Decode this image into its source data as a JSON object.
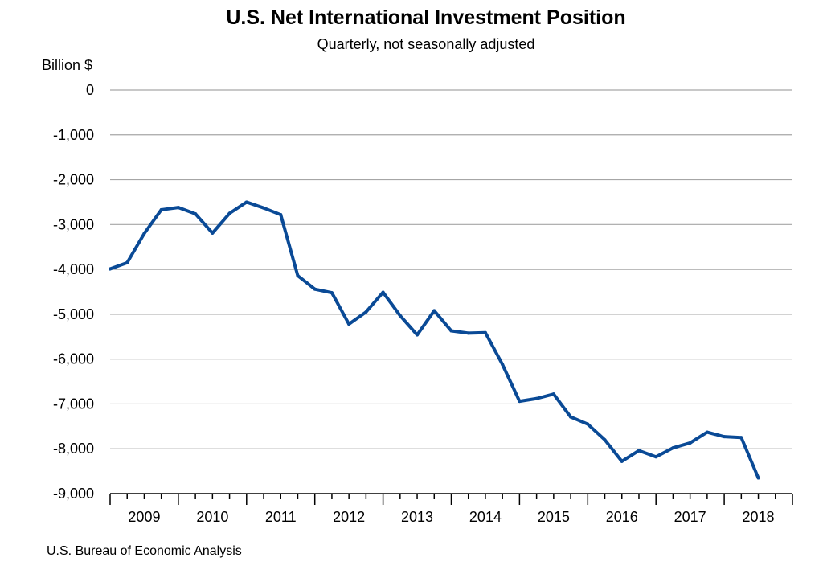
{
  "chart_data": {
    "type": "line",
    "title": "U.S. Net International Investment Position",
    "subtitle": "Quarterly, not seasonally adjusted",
    "ylabel": "Billion $",
    "xlabel": "",
    "ylim": [
      -9000,
      0
    ],
    "yticks": [
      0,
      -1000,
      -2000,
      -3000,
      -4000,
      -5000,
      -6000,
      -7000,
      -8000,
      -9000
    ],
    "ytick_labels": [
      "0",
      "-1,000",
      "-2,000",
      "-3,000",
      "-4,000",
      "-5,000",
      "-6,000",
      "-7,000",
      "-8,000",
      "-9,000"
    ],
    "years": [
      "2009",
      "2010",
      "2011",
      "2012",
      "2013",
      "2014",
      "2015",
      "2016",
      "2017",
      "2018"
    ],
    "quarters_per_year": 4,
    "grid": "horizontal",
    "legend": "none",
    "line_color": "#0a4a96",
    "series": [
      {
        "values": [
          -3990,
          -3850,
          -3200,
          -2670,
          -2620,
          -2760,
          -3190,
          -2750,
          -2500,
          -2630,
          -2780,
          -4140,
          -4440,
          -4520,
          -5220,
          -4950,
          -4510,
          -5030,
          -5460,
          -4920,
          -5370,
          -5420,
          -5410,
          -6120,
          -6940,
          -6880,
          -6780,
          -7290,
          -7450,
          -7800,
          -8280,
          -8040,
          -8180,
          -7980,
          -7870,
          -7630,
          -7730,
          -7750,
          -8650
        ]
      }
    ]
  },
  "footer": {
    "source": "U.S. Bureau of Economic Analysis"
  }
}
